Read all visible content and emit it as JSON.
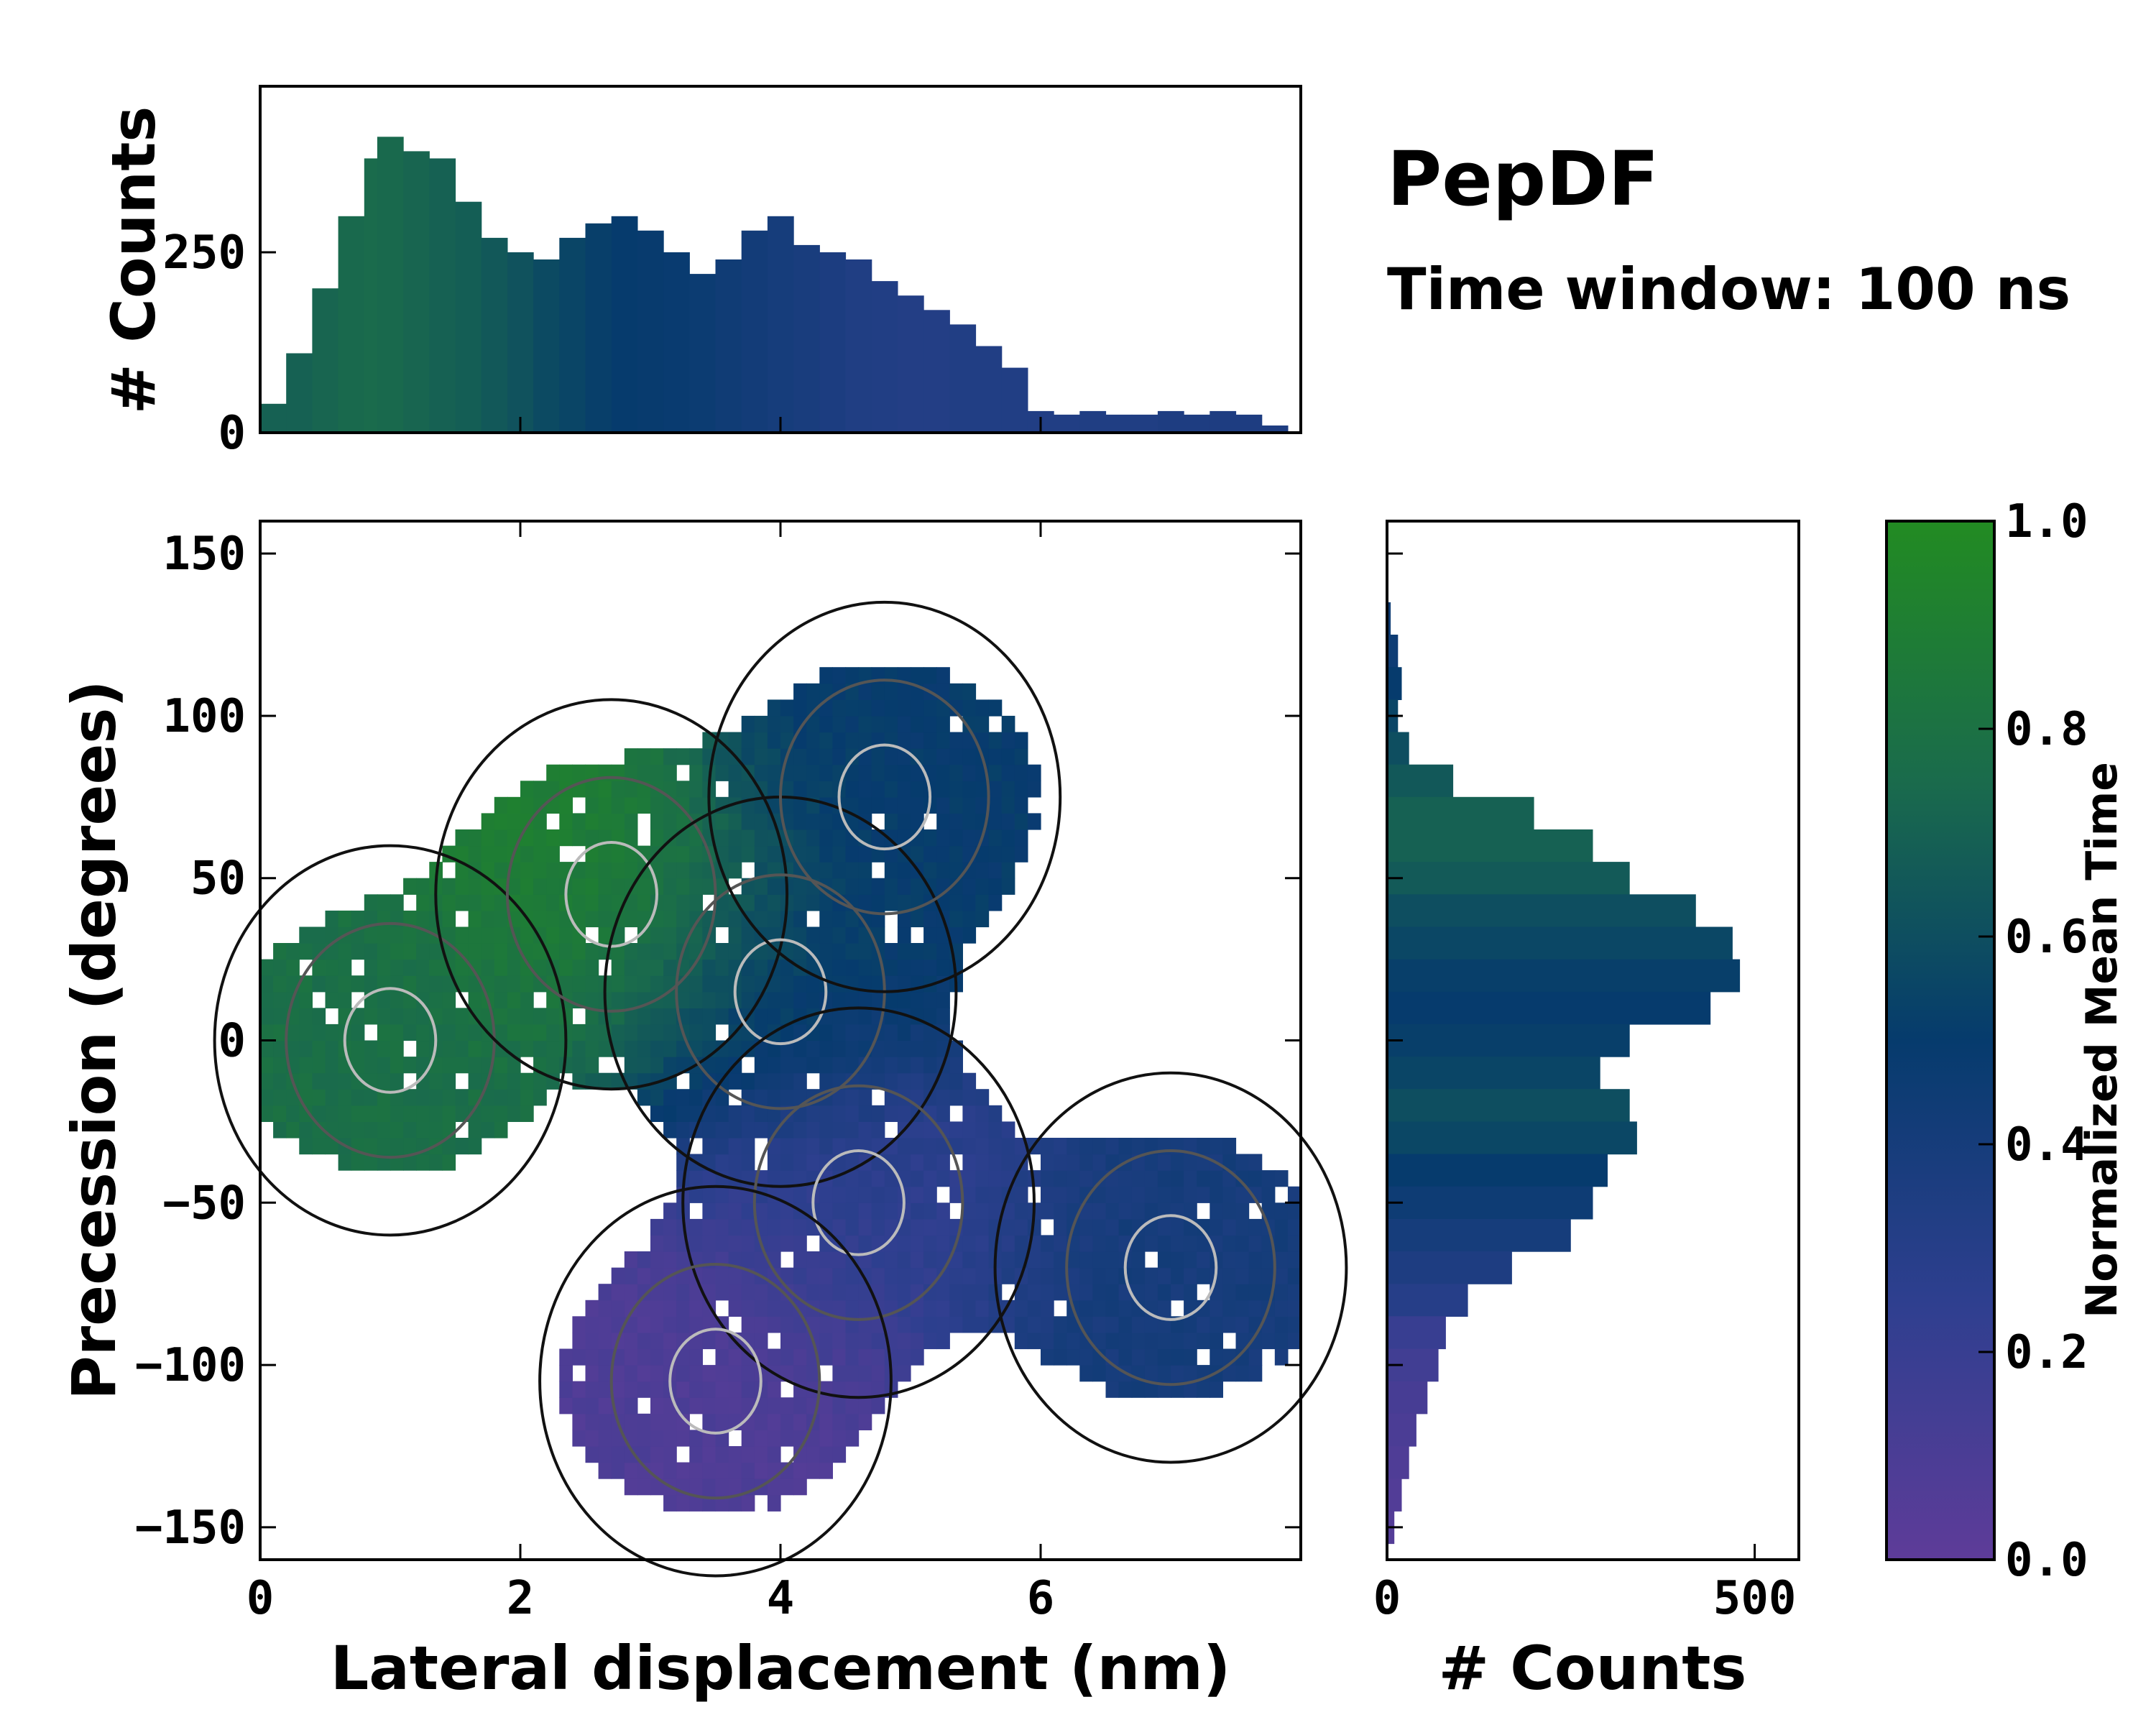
{
  "chart_data": [
    {
      "type": "heatmap",
      "name": "main-density",
      "xlabel": "Lateral displacement (nm)",
      "ylabel": "Precession (degrees)",
      "xlim": [
        0,
        8
      ],
      "ylim": [
        -160,
        160
      ],
      "xticks": [
        {
          "value": 0,
          "label": "0"
        },
        {
          "value": 2,
          "label": "2"
        },
        {
          "value": 4,
          "label": "4"
        },
        {
          "value": 6,
          "label": "6"
        }
      ],
      "yticks": [
        {
          "value": 150,
          "label": "150"
        },
        {
          "value": 100,
          "label": "100"
        },
        {
          "value": 50,
          "label": "50"
        },
        {
          "value": 0,
          "label": "0"
        },
        {
          "value": -50,
          "label": "−50"
        },
        {
          "value": -100,
          "label": "−100"
        },
        {
          "value": -150,
          "label": "−150"
        }
      ],
      "clusters": [
        {
          "x": 1.0,
          "y": 0,
          "mean_time": 0.78
        },
        {
          "x": 2.7,
          "y": 45,
          "mean_time": 0.9
        },
        {
          "x": 4.0,
          "y": 15,
          "mean_time": 0.5
        },
        {
          "x": 4.6,
          "y": -50,
          "mean_time": 0.25
        },
        {
          "x": 3.5,
          "y": -105,
          "mean_time": 0.08
        },
        {
          "x": 4.8,
          "y": 75,
          "mean_time": 0.5
        },
        {
          "x": 7.0,
          "y": -70,
          "mean_time": 0.4
        }
      ]
    },
    {
      "type": "bar",
      "name": "top-histogram",
      "ylabel": "# Counts",
      "xlim": [
        0,
        8
      ],
      "ylim": [
        0,
        480
      ],
      "yticks": [
        {
          "value": 0,
          "label": "0"
        },
        {
          "value": 250,
          "label": "250"
        }
      ],
      "x": [
        0.1,
        0.3,
        0.5,
        0.7,
        0.9,
        1.0,
        1.2,
        1.4,
        1.6,
        1.8,
        2.0,
        2.2,
        2.4,
        2.6,
        2.8,
        3.0,
        3.2,
        3.4,
        3.6,
        3.8,
        4.0,
        4.2,
        4.4,
        4.6,
        4.8,
        5.0,
        5.2,
        5.4,
        5.6,
        5.8,
        6.0,
        6.2,
        6.4,
        6.6,
        6.8,
        7.0,
        7.2,
        7.4,
        7.6,
        7.8
      ],
      "values": [
        40,
        110,
        200,
        300,
        380,
        410,
        390,
        380,
        320,
        270,
        250,
        240,
        270,
        290,
        300,
        280,
        250,
        220,
        240,
        280,
        300,
        260,
        250,
        240,
        210,
        190,
        170,
        150,
        120,
        90,
        30,
        25,
        30,
        25,
        25,
        30,
        25,
        30,
        25,
        10
      ],
      "mean_time": [
        0.7,
        0.7,
        0.72,
        0.74,
        0.75,
        0.74,
        0.72,
        0.7,
        0.68,
        0.65,
        0.62,
        0.58,
        0.55,
        0.52,
        0.5,
        0.49,
        0.48,
        0.46,
        0.44,
        0.42,
        0.4,
        0.38,
        0.36,
        0.34,
        0.33,
        0.32,
        0.32,
        0.33,
        0.33,
        0.33,
        0.33,
        0.33,
        0.34,
        0.34,
        0.34,
        0.35,
        0.35,
        0.35,
        0.35,
        0.35
      ]
    },
    {
      "type": "bar",
      "name": "right-histogram",
      "orientation": "horizontal",
      "xlabel": "# Counts",
      "xlim": [
        0,
        560
      ],
      "ylim": [
        -160,
        160
      ],
      "xticks": [
        {
          "value": 0,
          "label": "0"
        },
        {
          "value": 500,
          "label": "500"
        }
      ],
      "y": [
        130,
        120,
        110,
        100,
        90,
        80,
        70,
        60,
        50,
        40,
        30,
        20,
        10,
        0,
        -10,
        -20,
        -30,
        -40,
        -50,
        -60,
        -70,
        -80,
        -90,
        -100,
        -110,
        -120,
        -130,
        -140,
        -150
      ],
      "values": [
        5,
        15,
        20,
        15,
        30,
        90,
        200,
        280,
        330,
        420,
        470,
        480,
        440,
        330,
        290,
        330,
        340,
        300,
        280,
        250,
        170,
        110,
        80,
        70,
        55,
        40,
        30,
        20,
        10
      ],
      "mean_time": [
        0.45,
        0.45,
        0.5,
        0.55,
        0.6,
        0.65,
        0.7,
        0.7,
        0.66,
        0.6,
        0.56,
        0.52,
        0.5,
        0.52,
        0.55,
        0.6,
        0.56,
        0.5,
        0.45,
        0.4,
        0.35,
        0.3,
        0.2,
        0.15,
        0.12,
        0.1,
        0.08,
        0.06,
        0.05
      ]
    },
    {
      "type": "colorbar",
      "name": "colorbar",
      "label": "Normalized Mean Time",
      "range": [
        0,
        1
      ],
      "ticks": [
        {
          "value": 1.0,
          "label": "1.0"
        },
        {
          "value": 0.8,
          "label": "0.8"
        },
        {
          "value": 0.6,
          "label": "0.6"
        },
        {
          "value": 0.4,
          "label": "0.4"
        },
        {
          "value": 0.2,
          "label": "0.2"
        },
        {
          "value": 0.0,
          "label": "0.0"
        }
      ],
      "colors": {
        "low": "#5e3c99",
        "mid": "#063b6d",
        "high": "#228b22"
      }
    }
  ],
  "annotations": {
    "title": "PepDF",
    "subtitle": "Time window: 100 ns"
  }
}
